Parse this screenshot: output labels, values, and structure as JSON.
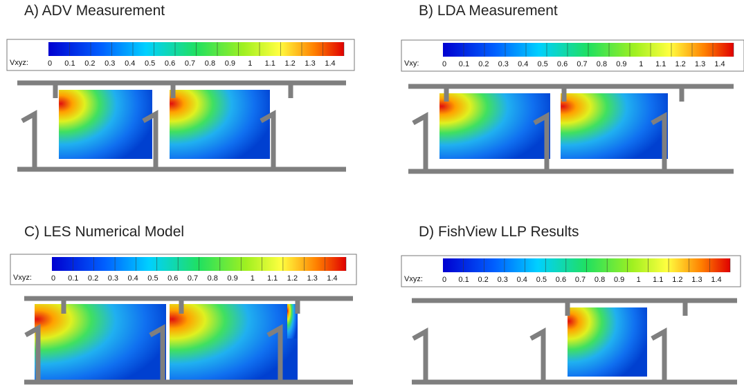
{
  "panels": [
    {
      "title": "A) ADV Measurement",
      "colorbar": {
        "label": "Vxyz:",
        "ticks": [
          0,
          0.1,
          0.2,
          0.3,
          0.4,
          0.5,
          0.6,
          0.7,
          0.8,
          0.9,
          1,
          1.1,
          1.2,
          1.3,
          1.4
        ]
      }
    },
    {
      "title": "B) LDA Measurement",
      "colorbar": {
        "label": "Vxy:",
        "ticks": [
          0,
          0.1,
          0.2,
          0.3,
          0.4,
          0.5,
          0.6,
          0.7,
          0.8,
          0.9,
          1,
          1.1,
          1.2,
          1.3,
          1.4
        ]
      }
    },
    {
      "title": "C) LES Numerical Model",
      "colorbar": {
        "label": "Vxyz:",
        "ticks": [
          0,
          0.1,
          0.2,
          0.3,
          0.4,
          0.5,
          0.6,
          0.7,
          0.8,
          0.9,
          1,
          1.1,
          1.2,
          1.3,
          1.4
        ]
      }
    },
    {
      "title": "D) FishView LLP Results",
      "colorbar": {
        "label": "Vxyz:",
        "ticks": [
          0,
          0.1,
          0.2,
          0.3,
          0.4,
          0.5,
          0.6,
          0.7,
          0.8,
          0.9,
          1,
          1.1,
          1.2,
          1.3,
          1.4
        ]
      }
    }
  ]
}
